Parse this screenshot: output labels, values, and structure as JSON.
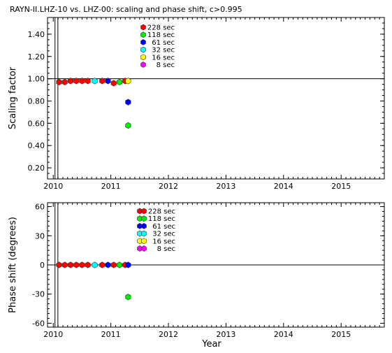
{
  "title": "RAYN-II.LHZ-10 vs. LHZ-00: scaling and phase shift, c>0.995",
  "colors": {
    "228 sec": "#ff0000",
    "118 sec": "#00ee00",
    "61 sec": "#0000ff",
    "32 sec": "#00ffff",
    "16 sec": "#ffff00",
    "8 sec": "#ff00ff"
  },
  "legend": [
    "228 sec",
    "118 sec",
    "61 sec",
    "32 sec",
    "16 sec",
    "8 sec"
  ],
  "chart_data": [
    {
      "type": "scatter",
      "ylabel": "Scaling factor",
      "xlabel": "",
      "xlim": [
        2009.9,
        2015.75
      ],
      "ylim": [
        0.1,
        1.55
      ],
      "x_ticks": [
        "2010",
        "2011",
        "2012",
        "2013",
        "2014",
        "2015"
      ],
      "y_ticks": [
        "0.20",
        "0.40",
        "0.60",
        "0.80",
        "1.00",
        "1.20",
        "1.40"
      ],
      "reference_line": 1.0,
      "series": [
        {
          "name": "228 sec",
          "x": [
            2010.1,
            2010.2,
            2010.3,
            2010.4,
            2010.5,
            2010.6,
            2010.85,
            2011.05,
            2011.25
          ],
          "y": [
            0.97,
            0.97,
            0.98,
            0.98,
            0.98,
            0.98,
            0.98,
            0.96,
            0.98
          ]
        },
        {
          "name": "118 sec",
          "x": [
            2011.15,
            2011.3
          ],
          "y": [
            0.97,
            0.58
          ]
        },
        {
          "name": "61 sec",
          "x": [
            2010.95,
            2011.3
          ],
          "y": [
            0.98,
            0.79
          ]
        },
        {
          "name": "32 sec",
          "x": [
            2010.72
          ],
          "y": [
            0.98
          ]
        },
        {
          "name": "16 sec",
          "x": [
            2011.3
          ],
          "y": [
            0.98
          ]
        },
        {
          "name": "8 sec",
          "x": [],
          "y": []
        }
      ]
    },
    {
      "type": "scatter",
      "ylabel": "Phase shift (degrees)",
      "xlabel": "Year",
      "xlim": [
        2009.9,
        2015.75
      ],
      "ylim": [
        -64,
        64
      ],
      "x_ticks": [
        "2010",
        "2011",
        "2012",
        "2013",
        "2014",
        "2015"
      ],
      "y_ticks": [
        "-60",
        "-30",
        "0",
        "30",
        "60"
      ],
      "reference_line": 0,
      "series": [
        {
          "name": "228 sec",
          "x": [
            2010.1,
            2010.2,
            2010.3,
            2010.4,
            2010.5,
            2010.6,
            2010.85,
            2011.05,
            2011.25
          ],
          "y": [
            0,
            0,
            0,
            0,
            0,
            0,
            0,
            0,
            0
          ]
        },
        {
          "name": "118 sec",
          "x": [
            2011.15,
            2011.3
          ],
          "y": [
            0,
            -33
          ]
        },
        {
          "name": "61 sec",
          "x": [
            2010.95,
            2011.3
          ],
          "y": [
            0,
            0
          ]
        },
        {
          "name": "32 sec",
          "x": [
            2010.72
          ],
          "y": [
            0
          ]
        },
        {
          "name": "16 sec",
          "x": [],
          "y": []
        },
        {
          "name": "8 sec",
          "x": [],
          "y": []
        }
      ]
    }
  ]
}
